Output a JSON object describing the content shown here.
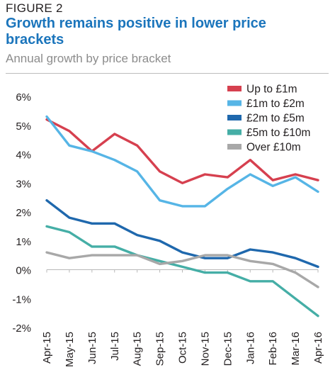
{
  "header": {
    "figure_label": "FIGURE 2",
    "title": "Growth remains positive in lower price brackets",
    "subtitle": "Annual growth by price bracket"
  },
  "chart_data": {
    "type": "line",
    "x": [
      "Apr-15",
      "May-15",
      "Jun-15",
      "Jul-15",
      "Aug-15",
      "Sep-15",
      "Oct-15",
      "Nov-15",
      "Dec-15",
      "Jan-16",
      "Feb-16",
      "Mar-16",
      "Apr-16"
    ],
    "ylim": [
      -2,
      6
    ],
    "yticks": [
      -2,
      -1,
      0,
      1,
      2,
      3,
      4,
      5,
      6
    ],
    "ytick_labels": [
      "-2%",
      "-1%",
      "0%",
      "1%",
      "2%",
      "3%",
      "4%",
      "5%",
      "6%"
    ],
    "grid": false,
    "legend_position": "top-right",
    "series": [
      {
        "name": "Up to £1m",
        "color": "#d6404f",
        "values": [
          5.2,
          4.8,
          4.1,
          4.7,
          4.3,
          3.4,
          3.0,
          3.3,
          3.2,
          3.8,
          3.1,
          3.3,
          3.1
        ]
      },
      {
        "name": "£1m to £2m",
        "color": "#56b5e6",
        "values": [
          5.3,
          4.3,
          4.1,
          3.8,
          3.4,
          2.4,
          2.2,
          2.2,
          2.8,
          3.3,
          2.9,
          3.2,
          2.7
        ]
      },
      {
        "name": "£2m to £5m",
        "color": "#1f68ad",
        "values": [
          2.4,
          1.8,
          1.6,
          1.6,
          1.2,
          1.0,
          0.6,
          0.4,
          0.4,
          0.7,
          0.6,
          0.4,
          0.1
        ]
      },
      {
        "name": "£5m to £10m",
        "color": "#45aea6",
        "values": [
          1.5,
          1.3,
          0.8,
          0.8,
          0.5,
          0.3,
          0.1,
          -0.1,
          -0.1,
          -0.4,
          -0.4,
          -1.0,
          -1.6
        ]
      },
      {
        "name": "Over £10m",
        "color": "#a8a8a8",
        "values": [
          0.6,
          0.4,
          0.5,
          0.5,
          0.5,
          0.2,
          0.3,
          0.5,
          0.5,
          0.3,
          0.2,
          -0.1,
          -0.6
        ]
      }
    ]
  }
}
